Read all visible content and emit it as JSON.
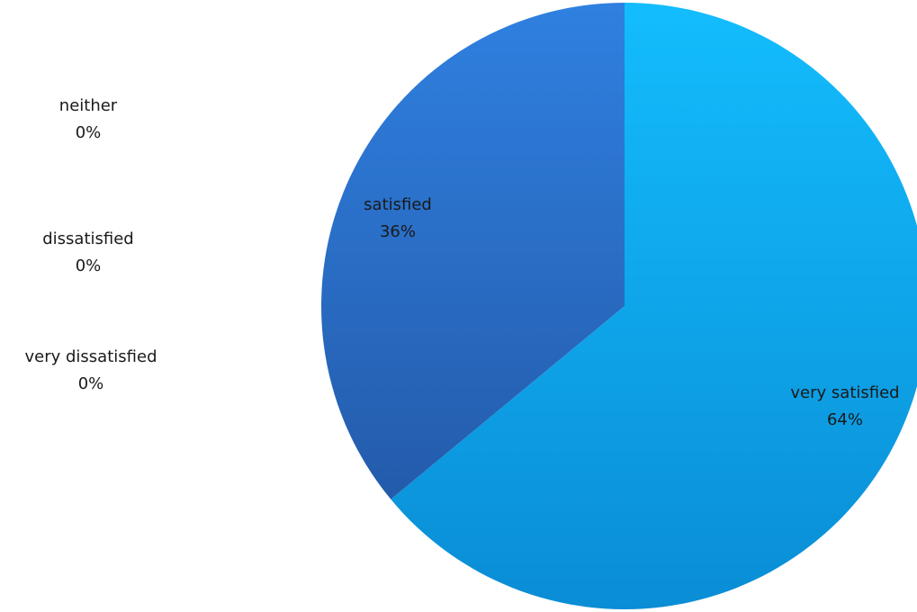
{
  "chart_data": {
    "type": "pie",
    "slices": [
      {
        "name": "very satisfied",
        "value": 64,
        "label": "64%",
        "color": "#12aeee"
      },
      {
        "name": "satisfied",
        "value": 36,
        "label": "36%",
        "color": "#2b78d4"
      },
      {
        "name": "neither",
        "value": 0,
        "label": "0%"
      },
      {
        "name": "dissatisfied",
        "value": 0,
        "label": "0%"
      },
      {
        "name": "very dissatisfied",
        "value": 0,
        "label": "0%"
      }
    ],
    "start_angle_deg": 0,
    "direction": "clockwise",
    "legend": "none"
  }
}
